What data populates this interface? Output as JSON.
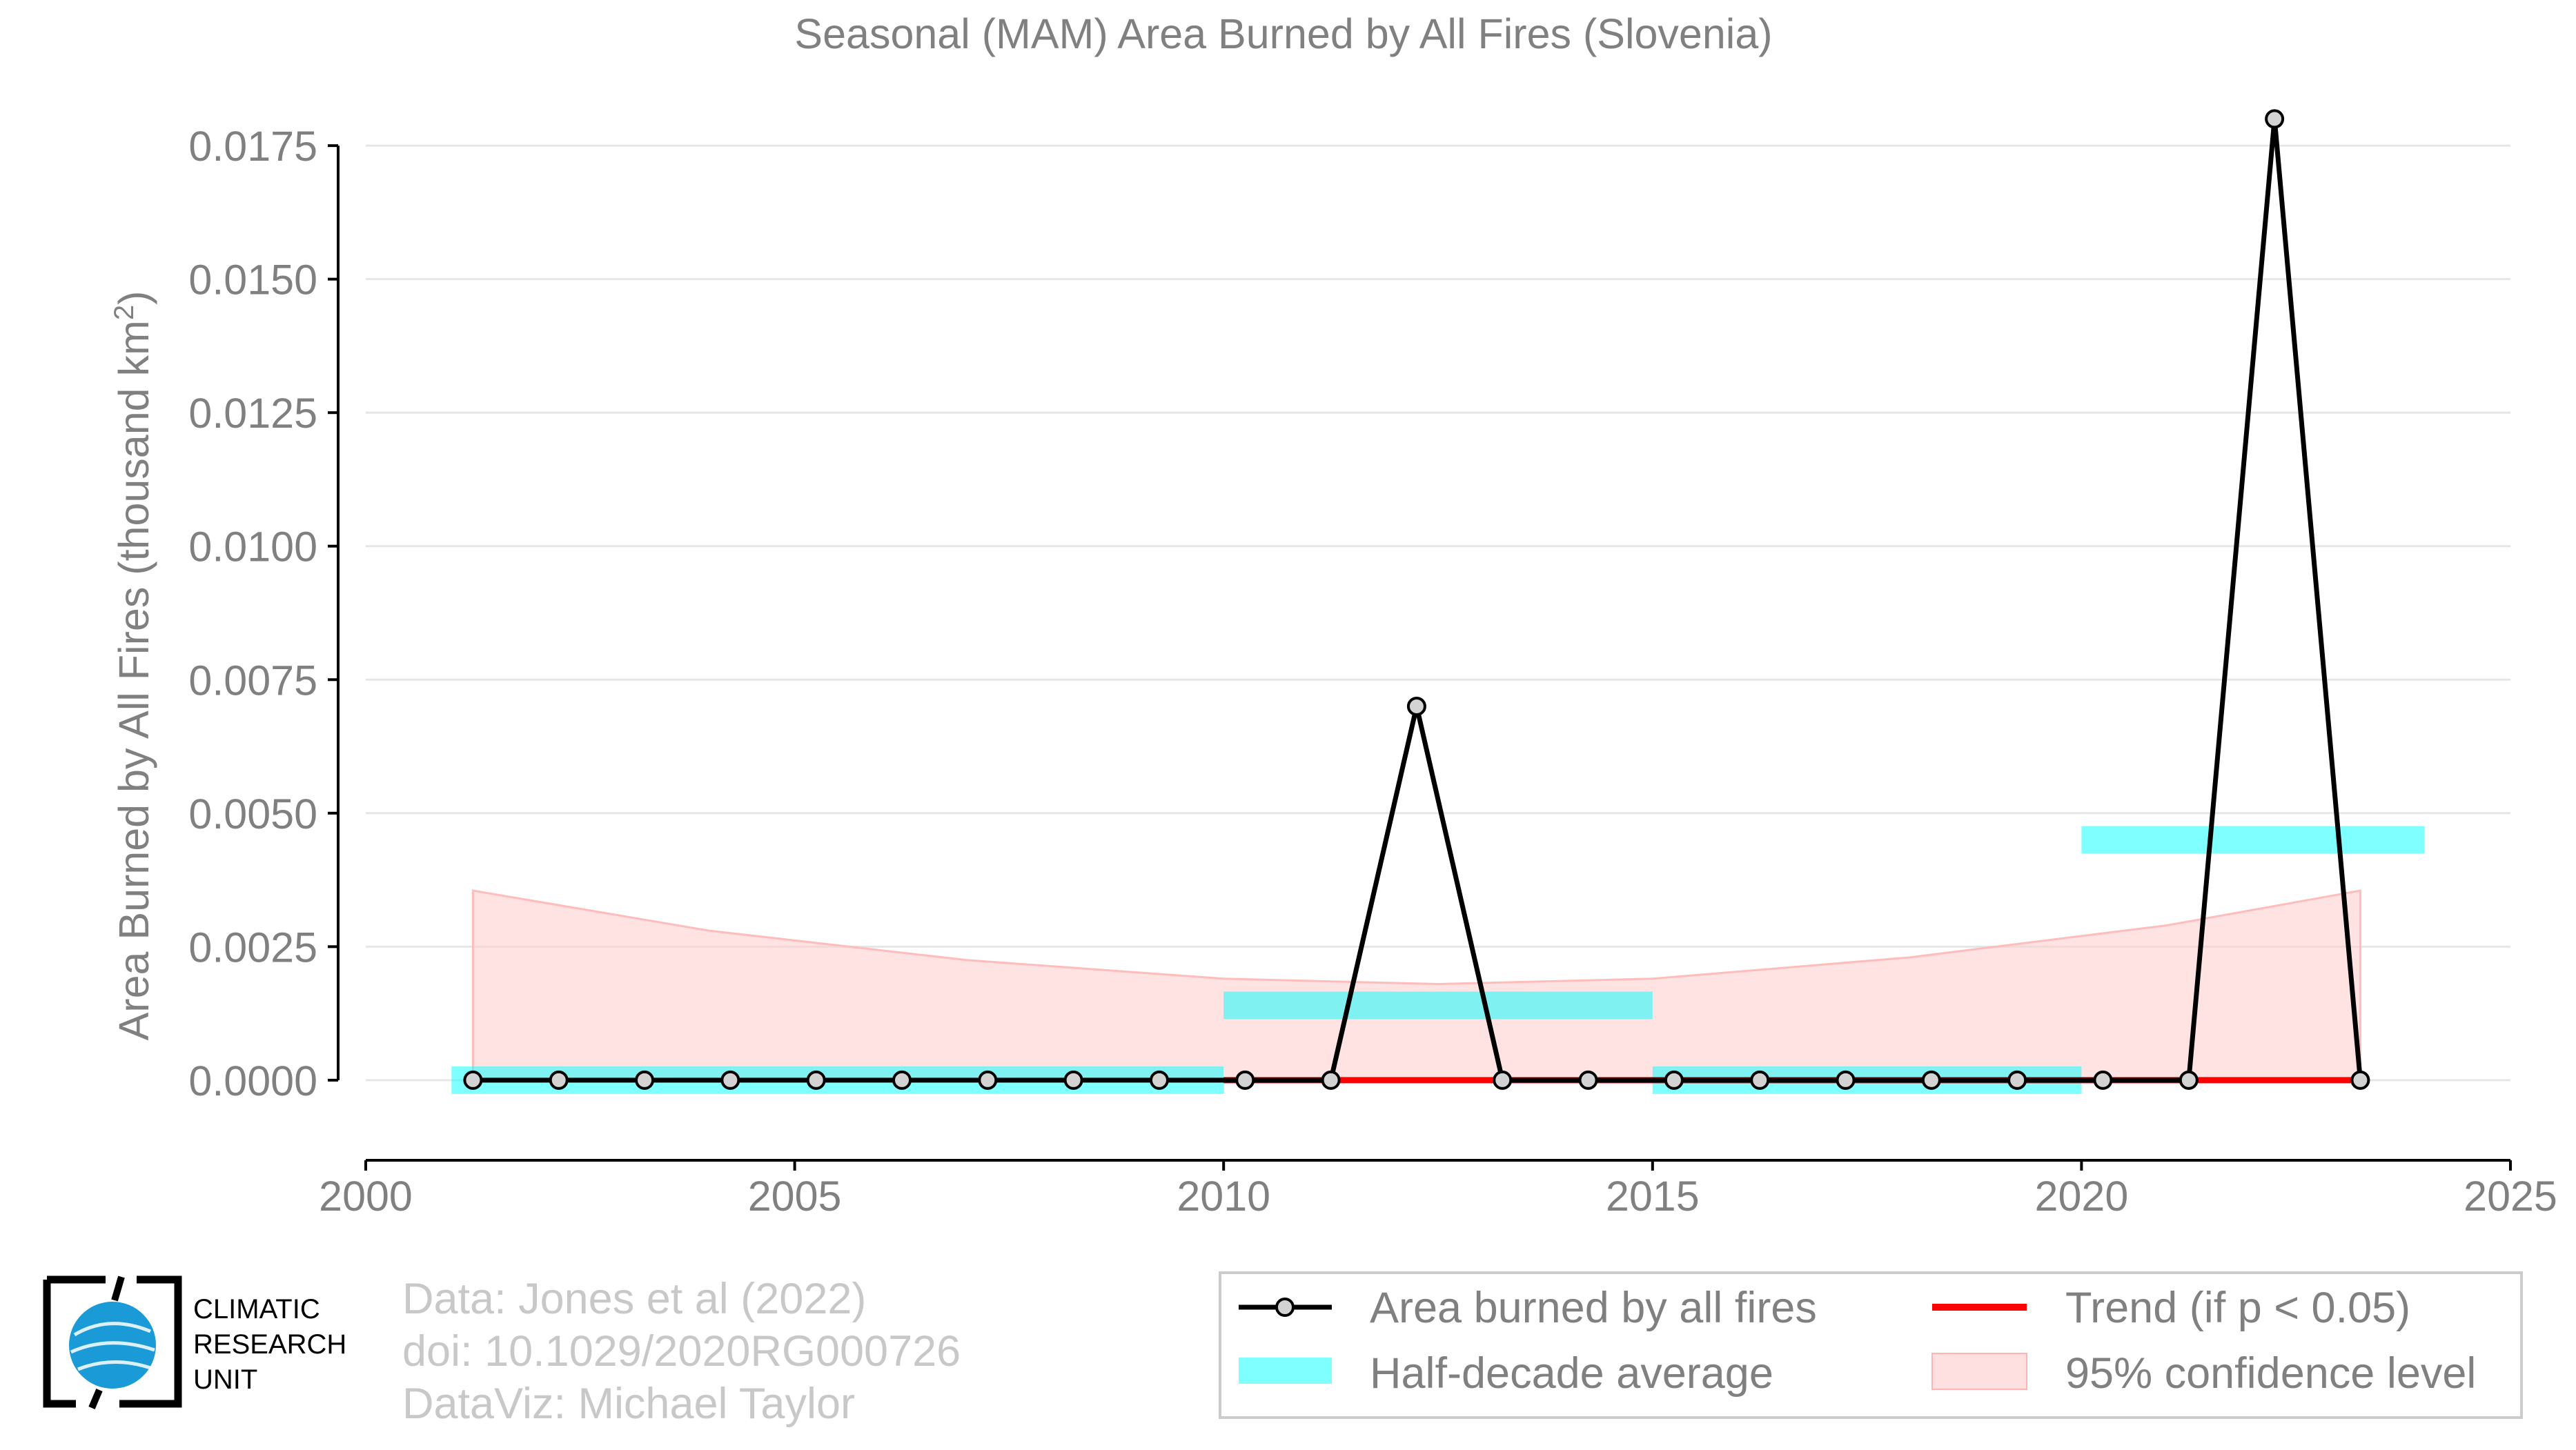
{
  "chart_data": {
    "type": "line",
    "title": "Seasonal (MAM) Area Burned by All Fires (Slovenia)",
    "ylabel": "Area Burned by All Fires (thousand km",
    "ylabel_sup": "2",
    "ylabel_end": ")",
    "xlim": [
      2000,
      2025
    ],
    "ylim": [
      -0.0015,
      0.019
    ],
    "xticks": [
      2000,
      2005,
      2010,
      2015,
      2020,
      2025
    ],
    "xtick_labels": [
      "2000",
      "2005",
      "2010",
      "2015",
      "2020",
      "2025"
    ],
    "yticks": [
      0,
      0.0025,
      0.005,
      0.0075,
      0.01,
      0.0125,
      0.015,
      0.0175
    ],
    "ytick_labels": [
      "0.0000",
      "0.0025",
      "0.0050",
      "0.0075",
      "0.0100",
      "0.0125",
      "0.0150",
      "0.0175"
    ],
    "grid": "horizontal",
    "series": [
      {
        "name": "Area burned by all fires",
        "x": [
          2001.25,
          2002.25,
          2003.25,
          2004.25,
          2005.25,
          2006.25,
          2007.25,
          2008.25,
          2009.25,
          2010.25,
          2011.25,
          2012.25,
          2013.25,
          2014.25,
          2015.25,
          2016.25,
          2017.25,
          2018.25,
          2019.25,
          2020.25,
          2021.25,
          2022.25,
          2023.25
        ],
        "values": [
          0,
          0,
          0,
          0,
          0,
          0,
          0,
          0,
          0,
          0,
          0,
          0.007,
          0,
          0,
          0,
          0,
          0,
          0,
          0,
          0,
          0,
          0.018,
          0
        ],
        "color": "#000000",
        "marker_fill": "#d3d3d3"
      }
    ],
    "trend": {
      "name": "Trend (if p < 0.05)",
      "x": [
        2010,
        2023.25
      ],
      "values": [
        0,
        0
      ],
      "color": "#ff0000"
    },
    "half_decade_average": {
      "name": "Half-decade average",
      "color": "#00ffff",
      "bars": [
        {
          "x0": 2001,
          "x1": 2010,
          "value": 0
        },
        {
          "x0": 2010,
          "x1": 2015,
          "value": 0.0014
        },
        {
          "x0": 2015,
          "x1": 2020,
          "value": 0
        },
        {
          "x0": 2020,
          "x1": 2024,
          "value": 0.0045
        }
      ]
    },
    "confidence_band": {
      "name": "95% confidence level",
      "color": "#ffcccc",
      "x": [
        2001.25,
        2004,
        2007,
        2010,
        2012.5,
        2015,
        2018,
        2021,
        2023.25
      ],
      "lower": [
        0,
        0,
        0,
        0,
        0,
        0,
        0,
        0,
        0
      ],
      "upper": [
        0.00355,
        0.0028,
        0.00225,
        0.0019,
        0.0018,
        0.0019,
        0.0023,
        0.0029,
        0.00355
      ]
    },
    "legend": {
      "placement": "bottom-right",
      "items": [
        {
          "key": "line",
          "label": "Area burned by all fires"
        },
        {
          "key": "trend",
          "label": "Trend (if p < 0.05)"
        },
        {
          "key": "avg",
          "label": "Half-decade average"
        },
        {
          "key": "band",
          "label": "95% confidence level"
        }
      ]
    }
  },
  "credits": {
    "line1": "Data: Jones et al (2022)",
    "line2": "doi: 10.1029/2020RG000726",
    "line3": "DataViz: Michael Taylor"
  },
  "logo": {
    "line1": "CLIMATIC",
    "line2": "RESEARCH",
    "line3": "UNIT"
  }
}
